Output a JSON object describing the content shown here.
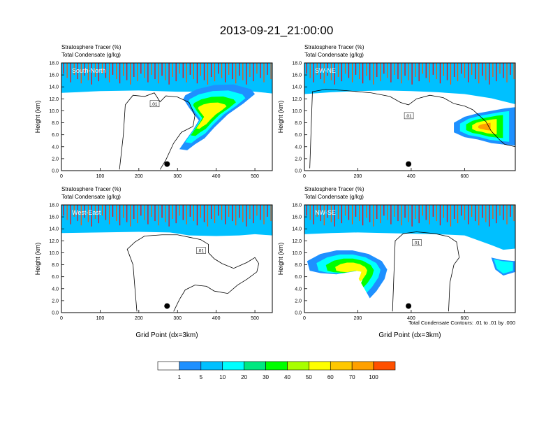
{
  "figure_title": "2013-09-21_21:00:00",
  "footnote": "Total Condensate Contours: .01 to .01 by .000",
  "chart_data": {
    "type": "heatmap",
    "title": "2013-09-21_21:00:00",
    "colorbar": {
      "labels": [
        "1",
        "5",
        "10",
        "20",
        "30",
        "40",
        "50",
        "60",
        "70",
        "100"
      ],
      "colors": [
        "#ffffff",
        "#1e90ff",
        "#00c0ff",
        "#00ffff",
        "#00e880",
        "#00ff00",
        "#a8ff00",
        "#ffff00",
        "#ffc800",
        "#ffa000",
        "#ff5000",
        "#ff0000"
      ]
    },
    "panels": [
      {
        "title": "South-North",
        "label1": "Stratosphere Tracer   (%)",
        "label2": "Total Condensate   (g/kg)",
        "xlim": [
          0,
          545
        ],
        "xticks": [
          "0",
          "100",
          "200",
          "300",
          "400",
          "500"
        ],
        "ylim": [
          0,
          18
        ],
        "yticks": [
          "0.0",
          "2.0",
          "4.0",
          "6.0",
          "8.0",
          "10.0",
          "12.0",
          "14.0",
          "16.0",
          "18.0"
        ],
        "ylabel": "Height (km)",
        "xlabel": "",
        "contour_label": ".01",
        "marker_x": 273,
        "marker_y": 1.1,
        "tropopause": [
          [
            0,
            14.3
          ],
          [
            40,
            14.4
          ],
          [
            100,
            14.6
          ],
          [
            200,
            14.7
          ],
          [
            300,
            14.5
          ],
          [
            350,
            14.5
          ],
          [
            400,
            14.8
          ],
          [
            450,
            14.8
          ],
          [
            500,
            14.5
          ],
          [
            545,
            14.2
          ]
        ],
        "plumes": [
          {
            "pts": [
              [
                320,
                12.6
              ],
              [
                350,
                13.6
              ],
              [
                395,
                14.3
              ],
              [
                445,
                14.4
              ],
              [
                490,
                13.6
              ],
              [
                500,
                12.8
              ],
              [
                470,
                11.2
              ],
              [
                430,
                9.4
              ],
              [
                395,
                7.2
              ],
              [
                370,
                5.4
              ],
              [
                345,
                4.4
              ],
              [
                325,
                3.4
              ],
              [
                305,
                3.6
              ],
              [
                320,
                5
              ],
              [
                340,
                6.8
              ],
              [
                355,
                8.4
              ],
              [
                330,
                10.5
              ],
              [
                315,
                12
              ]
            ],
            "level": 4
          }
        ],
        "cloud": [
          [
            150,
            0.2
          ],
          [
            160,
            6
          ],
          [
            165,
            11
          ],
          [
            185,
            12.6
          ],
          [
            215,
            12.4
          ],
          [
            240,
            13
          ],
          [
            255,
            11.5
          ],
          [
            270,
            12.5
          ],
          [
            300,
            12.3
          ],
          [
            330,
            11.4
          ],
          [
            345,
            9.2
          ],
          [
            340,
            7.4
          ],
          [
            310,
            6.4
          ],
          [
            290,
            4.6
          ],
          [
            270,
            1.8
          ],
          [
            255,
            0.2
          ]
        ]
      },
      {
        "title": "SW-NE",
        "label1": "Stratosphere Tracer   (%)",
        "label2": "Total Condensate   (g/kg)",
        "xlim": [
          0,
          790
        ],
        "xticks": [
          "0",
          "200",
          "400",
          "600"
        ],
        "ylim": [
          0,
          18
        ],
        "yticks": [
          "0.0",
          "2.0",
          "4.0",
          "6.0",
          "8.0",
          "10.0",
          "12.0",
          "14.0",
          "16.0",
          "18.0"
        ],
        "ylabel": "Height (km)",
        "xlabel": "",
        "contour_label": ".01",
        "marker_x": 390,
        "marker_y": 1.1,
        "tropopause": [
          [
            0,
            14.1
          ],
          [
            100,
            14.4
          ],
          [
            200,
            14.6
          ],
          [
            300,
            14.7
          ],
          [
            400,
            14.6
          ],
          [
            500,
            14.4
          ],
          [
            600,
            14.1
          ],
          [
            700,
            13.4
          ],
          [
            790,
            12.4
          ]
        ],
        "plumes": [
          {
            "pts": [
              [
                560,
                8
              ],
              [
                600,
                9
              ],
              [
                650,
                9.6
              ],
              [
                700,
                10
              ],
              [
                750,
                10.4
              ],
              [
                790,
                10.6
              ],
              [
                790,
                4.2
              ],
              [
                740,
                4.4
              ],
              [
                700,
                4.6
              ],
              [
                650,
                5.2
              ],
              [
                600,
                5.6
              ],
              [
                560,
                6.4
              ]
            ],
            "level": 5
          }
        ],
        "cloud": [
          [
            20,
            0.4
          ],
          [
            30,
            13.2
          ],
          [
            80,
            13.6
          ],
          [
            150,
            13.4
          ],
          [
            250,
            13
          ],
          [
            320,
            12.4
          ],
          [
            360,
            11.4
          ],
          [
            390,
            11
          ],
          [
            420,
            12
          ],
          [
            470,
            12.6
          ],
          [
            520,
            12.2
          ],
          [
            560,
            11.2
          ],
          [
            600,
            10.8
          ],
          [
            630,
            10.2
          ],
          [
            650,
            9.4
          ],
          [
            680,
            8.2
          ],
          [
            700,
            6.6
          ],
          [
            730,
            5.2
          ],
          [
            750,
            4.4
          ],
          [
            790,
            4
          ],
          [
            790,
            0.4
          ]
        ]
      },
      {
        "title": "West-East",
        "label1": "Stratosphere Tracer   (%)",
        "label2": "Total Condensate   (g/kg)",
        "xlim": [
          0,
          545
        ],
        "xticks": [
          "0",
          "100",
          "200",
          "300",
          "400",
          "500"
        ],
        "ylim": [
          0,
          18
        ],
        "yticks": [
          "0.0",
          "2.0",
          "4.0",
          "6.0",
          "8.0",
          "10.0",
          "12.0",
          "14.0",
          "16.0",
          "18.0"
        ],
        "ylabel": "Height (km)",
        "xlabel": "Grid Point (dx=3km)",
        "contour_label": ".01",
        "marker_x": 273,
        "marker_y": 1.1,
        "tropopause": [
          [
            0,
            14.6
          ],
          [
            100,
            14.7
          ],
          [
            200,
            14.8
          ],
          [
            280,
            14.7
          ],
          [
            330,
            14.2
          ],
          [
            400,
            14.1
          ],
          [
            460,
            14.2
          ],
          [
            500,
            14.4
          ],
          [
            545,
            14.2
          ]
        ],
        "plumes": [],
        "cloud": [
          [
            195,
            0.2
          ],
          [
            190,
            4
          ],
          [
            185,
            8
          ],
          [
            170,
            10.6
          ],
          [
            190,
            11.8
          ],
          [
            215,
            12.8
          ],
          [
            260,
            13
          ],
          [
            300,
            13
          ],
          [
            330,
            12.6
          ],
          [
            360,
            12.2
          ],
          [
            380,
            11.4
          ],
          [
            380,
            10
          ],
          [
            395,
            9
          ],
          [
            415,
            8.2
          ],
          [
            445,
            7.4
          ],
          [
            480,
            8.4
          ],
          [
            500,
            9.2
          ],
          [
            510,
            8.2
          ],
          [
            505,
            6.8
          ],
          [
            480,
            5.6
          ],
          [
            455,
            4.6
          ],
          [
            430,
            3.2
          ],
          [
            395,
            3.6
          ],
          [
            375,
            4.4
          ],
          [
            345,
            4.6
          ],
          [
            320,
            3.8
          ],
          [
            305,
            2.2
          ],
          [
            290,
            0.2
          ]
        ]
      },
      {
        "title": "NW-SE",
        "label1": "Stratosphere Tracer   (%)",
        "label2": "Total Condensate   (g/kg)",
        "xlim": [
          0,
          790
        ],
        "xticks": [
          "0",
          "200",
          "400",
          "600"
        ],
        "ylim": [
          0,
          18
        ],
        "yticks": [
          "0.0",
          "2.0",
          "4.0",
          "6.0",
          "8.0",
          "10.0",
          "12.0",
          "14.0",
          "16.0",
          "18.0"
        ],
        "ylabel": "Height (km)",
        "xlabel": "Grid Point (dx=3km)",
        "contour_label": ".01",
        "marker_x": 390,
        "marker_y": 1.1,
        "tropopause": [
          [
            0,
            14.4
          ],
          [
            100,
            14.6
          ],
          [
            200,
            14.7
          ],
          [
            300,
            14.6
          ],
          [
            400,
            14.5
          ],
          [
            500,
            14.4
          ],
          [
            600,
            14.2
          ],
          [
            650,
            13.4
          ],
          [
            700,
            12.6
          ],
          [
            745,
            11.8
          ],
          [
            790,
            12
          ]
        ],
        "plumes": [
          {
            "pts": [
              [
                10,
                8.6
              ],
              [
                60,
                9.8
              ],
              [
                120,
                10.4
              ],
              [
                180,
                10.4
              ],
              [
                240,
                9.8
              ],
              [
                290,
                8.6
              ],
              [
                310,
                7.2
              ],
              [
                300,
                5.6
              ],
              [
                270,
                3.6
              ],
              [
                245,
                2.4
              ],
              [
                230,
                3.6
              ],
              [
                245,
                5.2
              ],
              [
                255,
                6.6
              ],
              [
                200,
                7
              ],
              [
                120,
                6.4
              ],
              [
                60,
                6.6
              ],
              [
                20,
                7
              ]
            ],
            "level": 4
          },
          {
            "pts": [
              [
                700,
                9.2
              ],
              [
                740,
                8.8
              ],
              [
                790,
                8.6
              ],
              [
                790,
                6.8
              ],
              [
                745,
                6.2
              ],
              [
                715,
                7.2
              ]
            ],
            "level": 2
          }
        ],
        "cloud": [
          [
            330,
            0.2
          ],
          [
            340,
            12
          ],
          [
            370,
            13.2
          ],
          [
            420,
            13.5
          ],
          [
            490,
            13.2
          ],
          [
            540,
            12.7
          ],
          [
            570,
            11.8
          ],
          [
            580,
            9.2
          ],
          [
            560,
            8
          ],
          [
            545,
            5
          ],
          [
            540,
            0.2
          ]
        ]
      }
    ]
  }
}
